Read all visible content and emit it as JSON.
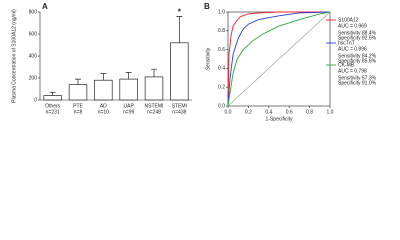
{
  "chart_data": [
    {
      "type": "bar",
      "panel_label": "A",
      "ylabel": "Plasma Concentration of S100A12 (ng/ml)",
      "categories": [
        "Others",
        "PTE",
        "AD",
        "UAP",
        "NSTEMI",
        "STEMI"
      ],
      "category_counts": [
        "n=231",
        "n=8",
        "n=10",
        "n=99",
        "n=248",
        "n=438"
      ],
      "values": [
        40,
        140,
        180,
        190,
        210,
        520
      ],
      "errors": [
        30,
        50,
        60,
        60,
        70,
        240
      ],
      "color": "#ffffff",
      "edge_color": "#222222",
      "annotation": {
        "text": "*",
        "category": "STEMI"
      },
      "ylim": [
        0,
        800
      ],
      "yticks": [
        0,
        200,
        400,
        600,
        800
      ]
    },
    {
      "type": "roc",
      "panel_label": "B",
      "xlabel": "1-Specificity",
      "ylabel": "Sensitivity",
      "xlim": [
        0,
        1
      ],
      "ylim": [
        0,
        1
      ],
      "xticks": [
        {
          "value": 0,
          "label": "0.0"
        },
        0.2,
        0.4,
        0.6,
        0.8,
        {
          "value": 1,
          "label": "1.0"
        }
      ],
      "yticks": [
        {
          "value": 0,
          "label": "0.0"
        },
        0.2,
        0.4,
        0.6,
        0.8,
        {
          "value": 1,
          "label": "1.0"
        }
      ],
      "reference_line": true,
      "series": [
        {
          "name": "S100A12",
          "color": "#e8252a",
          "x": [
            0,
            0.01,
            0.03,
            0.05,
            0.08,
            0.12,
            0.2,
            0.3,
            0.5,
            0.7,
            1
          ],
          "y": [
            0,
            0.55,
            0.75,
            0.85,
            0.9,
            0.95,
            0.98,
            0.99,
            1,
            1,
            1
          ],
          "auc_label": "AUC = 0.969",
          "sensitivity_label": "Sensitivity 88.4%",
          "specificity_label": "Specificity 92.5%"
        },
        {
          "name": "hscTnT",
          "color": "#2b3bd6",
          "x": [
            0,
            0.02,
            0.05,
            0.1,
            0.15,
            0.2,
            0.3,
            0.5,
            0.7,
            1
          ],
          "y": [
            0,
            0.3,
            0.55,
            0.72,
            0.82,
            0.87,
            0.92,
            0.96,
            0.99,
            1
          ],
          "auc_label": "AUC = 0.896",
          "sensitivity_label": "Sensitivity 84.2%",
          "specificity_label": "Specificity 85.6%"
        },
        {
          "name": "CK-MB",
          "color": "#2aa83c",
          "x": [
            0,
            0.05,
            0.09,
            0.15,
            0.25,
            0.35,
            0.5,
            0.7,
            0.9,
            1
          ],
          "y": [
            0,
            0.35,
            0.5,
            0.6,
            0.7,
            0.77,
            0.85,
            0.92,
            0.98,
            1
          ],
          "auc_label": "AUC = 0.798",
          "sensitivity_label": "Sensitivity 57.3%",
          "specificity_label": "Specificity 91.0%"
        }
      ]
    }
  ]
}
